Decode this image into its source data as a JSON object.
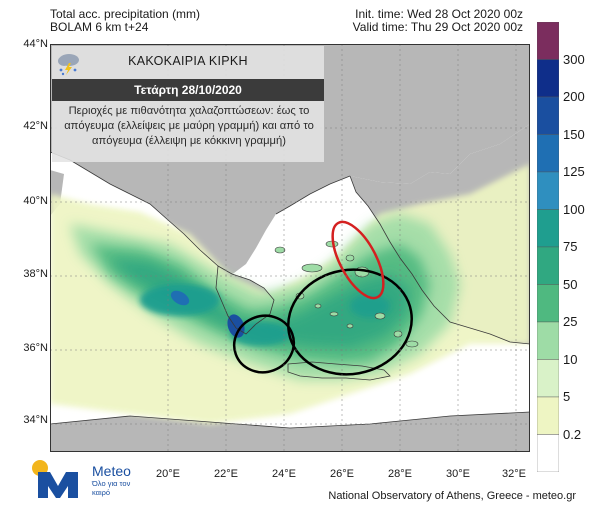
{
  "header": {
    "left_line1": "Total acc. precipitation (mm)",
    "left_line2": "BOLAM 6 km t+24",
    "right_line1": "Init. time: Wed 28 Oct 2020 00z",
    "right_line2": "Valid time: Thu 29 Oct 2020 00z"
  },
  "infobox": {
    "title": "ΚΑΚΟΚΑΙΡΙΑ ΚΙΡΚΗ",
    "date": "Τετάρτη 28/10/2020",
    "description": "Περιοχές με πιθανότητα χαλαζοπτώσεων: έως το απόγευμα (ελλείψεις με μαύρη γραμμή) και από το απόγευμα (έλλειψη με κόκκινη γραμμή)",
    "icon": "storm-hail-icon"
  },
  "latitude_labels": [
    "44°N",
    "42°N",
    "40°N",
    "38°N",
    "36°N",
    "34°N"
  ],
  "longitude_labels": [
    "20°E",
    "22°E",
    "24°E",
    "26°E",
    "28°E",
    "30°E",
    "32°E"
  ],
  "colorbar": {
    "labels": [
      "300",
      "200",
      "150",
      "125",
      "100",
      "75",
      "50",
      "25",
      "10",
      "5",
      "0.2"
    ],
    "colors": [
      "#7b2d5e",
      "#0f2e8a",
      "#1a4fa0",
      "#1f6fb3",
      "#2f8fbf",
      "#1f9e8f",
      "#30a881",
      "#4fb980",
      "#9edca6",
      "#d9f2c8",
      "#eef5c3",
      "#ffffff"
    ]
  },
  "map_colors": {
    "land": "#b7b7b7",
    "sea": "#ffffff",
    "light_rain": "#eef5c3",
    "black_ellipse": "#000000",
    "red_ellipse": "#d42020"
  },
  "logo": {
    "brand": "Meteo",
    "tagline": "Όλο για τον καιρό"
  },
  "footer": "National Observatory of Athens, Greece - meteo.gr"
}
